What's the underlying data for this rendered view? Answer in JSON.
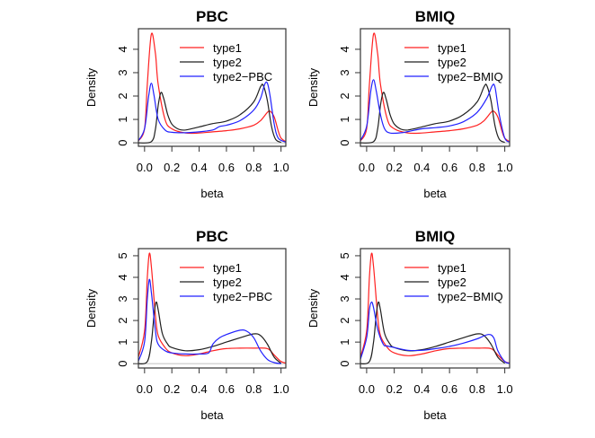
{
  "colors": {
    "type1": "#ff2020",
    "type2": "#202020",
    "normalized": "#2020ff",
    "zero_line": "#c8c8c8"
  },
  "chart_data": [
    {
      "type": "line",
      "title": "PBC",
      "xlabel": "beta",
      "ylabel": "Density",
      "xlim": [
        -0.045,
        1.035
      ],
      "ylim": [
        -0.15,
        4.88
      ],
      "xticks": [
        "0.0",
        "0.2",
        "0.4",
        "0.6",
        "0.8",
        "1.0"
      ],
      "yticks": [
        "0",
        "1",
        "2",
        "3",
        "4"
      ],
      "legend_position": "top-right",
      "series": [
        {
          "name": "type1",
          "color": "#ff2020",
          "points": [
            [
              -0.05,
              0.05
            ],
            [
              0,
              0.6
            ],
            [
              0.02,
              2.5
            ],
            [
              0.05,
              4.65
            ],
            [
              0.08,
              3.8
            ],
            [
              0.1,
              2.5
            ],
            [
              0.15,
              1.0
            ],
            [
              0.2,
              0.6
            ],
            [
              0.3,
              0.42
            ],
            [
              0.4,
              0.42
            ],
            [
              0.5,
              0.47
            ],
            [
              0.6,
              0.52
            ],
            [
              0.7,
              0.6
            ],
            [
              0.8,
              0.75
            ],
            [
              0.85,
              0.95
            ],
            [
              0.9,
              1.3
            ],
            [
              0.92,
              1.35
            ],
            [
              0.95,
              1.1
            ],
            [
              0.98,
              0.5
            ],
            [
              1.0,
              0.2
            ],
            [
              1.04,
              0.03
            ]
          ]
        },
        {
          "name": "type2",
          "color": "#202020",
          "points": [
            [
              -0.05,
              0
            ],
            [
              0.05,
              0.05
            ],
            [
              0.08,
              0.6
            ],
            [
              0.1,
              1.6
            ],
            [
              0.12,
              2.15
            ],
            [
              0.14,
              1.9
            ],
            [
              0.17,
              1.2
            ],
            [
              0.2,
              0.8
            ],
            [
              0.25,
              0.58
            ],
            [
              0.3,
              0.55
            ],
            [
              0.4,
              0.68
            ],
            [
              0.5,
              0.82
            ],
            [
              0.6,
              0.93
            ],
            [
              0.7,
              1.2
            ],
            [
              0.8,
              1.75
            ],
            [
              0.85,
              2.4
            ],
            [
              0.87,
              2.45
            ],
            [
              0.9,
              1.8
            ],
            [
              0.93,
              0.7
            ],
            [
              0.96,
              0.15
            ],
            [
              1.0,
              0.02
            ]
          ]
        },
        {
          "name": "type2−PBC",
          "color": "#2020ff",
          "points": [
            [
              -0.05,
              0.05
            ],
            [
              0,
              0.6
            ],
            [
              0.03,
              2.0
            ],
            [
              0.05,
              2.55
            ],
            [
              0.07,
              2.0
            ],
            [
              0.1,
              1.0
            ],
            [
              0.15,
              0.55
            ],
            [
              0.2,
              0.45
            ],
            [
              0.3,
              0.43
            ],
            [
              0.4,
              0.47
            ],
            [
              0.5,
              0.55
            ],
            [
              0.55,
              0.7
            ],
            [
              0.6,
              0.75
            ],
            [
              0.7,
              0.95
            ],
            [
              0.8,
              1.4
            ],
            [
              0.85,
              1.9
            ],
            [
              0.88,
              2.5
            ],
            [
              0.9,
              2.55
            ],
            [
              0.92,
              2.0
            ],
            [
              0.95,
              0.8
            ],
            [
              0.98,
              0.2
            ],
            [
              1.04,
              0.02
            ]
          ]
        }
      ]
    },
    {
      "type": "line",
      "title": "BMIQ",
      "xlabel": "beta",
      "ylabel": "Density",
      "xlim": [
        -0.045,
        1.035
      ],
      "ylim": [
        -0.15,
        4.88
      ],
      "xticks": [
        "0.0",
        "0.2",
        "0.4",
        "0.6",
        "0.8",
        "1.0"
      ],
      "yticks": [
        "0",
        "1",
        "2",
        "3",
        "4"
      ],
      "legend_position": "top-right",
      "series": [
        {
          "name": "type1",
          "color": "#ff2020",
          "points": [
            [
              -0.05,
              0.05
            ],
            [
              0,
              0.6
            ],
            [
              0.02,
              2.5
            ],
            [
              0.05,
              4.65
            ],
            [
              0.08,
              3.8
            ],
            [
              0.1,
              2.5
            ],
            [
              0.15,
              1.0
            ],
            [
              0.2,
              0.6
            ],
            [
              0.3,
              0.42
            ],
            [
              0.4,
              0.42
            ],
            [
              0.5,
              0.47
            ],
            [
              0.6,
              0.52
            ],
            [
              0.7,
              0.6
            ],
            [
              0.8,
              0.75
            ],
            [
              0.85,
              0.95
            ],
            [
              0.9,
              1.3
            ],
            [
              0.92,
              1.35
            ],
            [
              0.95,
              1.1
            ],
            [
              0.98,
              0.5
            ],
            [
              1.0,
              0.2
            ],
            [
              1.04,
              0.03
            ]
          ]
        },
        {
          "name": "type2",
          "color": "#202020",
          "points": [
            [
              -0.05,
              0
            ],
            [
              0.05,
              0.05
            ],
            [
              0.08,
              0.6
            ],
            [
              0.1,
              1.6
            ],
            [
              0.12,
              2.15
            ],
            [
              0.14,
              1.9
            ],
            [
              0.17,
              1.2
            ],
            [
              0.2,
              0.8
            ],
            [
              0.25,
              0.58
            ],
            [
              0.3,
              0.55
            ],
            [
              0.4,
              0.68
            ],
            [
              0.5,
              0.82
            ],
            [
              0.6,
              0.93
            ],
            [
              0.7,
              1.2
            ],
            [
              0.8,
              1.75
            ],
            [
              0.85,
              2.4
            ],
            [
              0.87,
              2.45
            ],
            [
              0.9,
              1.8
            ],
            [
              0.93,
              0.7
            ],
            [
              0.96,
              0.15
            ],
            [
              1.0,
              0.02
            ]
          ]
        },
        {
          "name": "type2−BMIQ",
          "color": "#2020ff",
          "points": [
            [
              -0.05,
              0.05
            ],
            [
              0,
              0.7
            ],
            [
              0.03,
              2.2
            ],
            [
              0.05,
              2.7
            ],
            [
              0.07,
              2.2
            ],
            [
              0.1,
              1.2
            ],
            [
              0.13,
              0.6
            ],
            [
              0.17,
              0.42
            ],
            [
              0.25,
              0.43
            ],
            [
              0.3,
              0.48
            ],
            [
              0.4,
              0.6
            ],
            [
              0.5,
              0.65
            ],
            [
              0.6,
              0.72
            ],
            [
              0.7,
              0.9
            ],
            [
              0.8,
              1.3
            ],
            [
              0.87,
              1.9
            ],
            [
              0.91,
              2.45
            ],
            [
              0.93,
              2.35
            ],
            [
              0.96,
              1.2
            ],
            [
              1.0,
              0.2
            ],
            [
              1.04,
              0.03
            ]
          ]
        }
      ]
    },
    {
      "type": "line",
      "title": "PBC",
      "xlabel": "beta",
      "ylabel": "Density",
      "xlim": [
        -0.045,
        1.035
      ],
      "ylim": [
        -0.2,
        5.33
      ],
      "xticks": [
        "0.0",
        "0.2",
        "0.4",
        "0.6",
        "0.8",
        "1.0"
      ],
      "yticks": [
        "0",
        "1",
        "2",
        "3",
        "4",
        "5"
      ],
      "legend_position": "top-right",
      "series": [
        {
          "name": "type1",
          "color": "#ff2020",
          "points": [
            [
              -0.05,
              0.2
            ],
            [
              0,
              1.5
            ],
            [
              0.02,
              4.0
            ],
            [
              0.035,
              5.1
            ],
            [
              0.05,
              4.5
            ],
            [
              0.08,
              2.2
            ],
            [
              0.1,
              1.3
            ],
            [
              0.15,
              0.75
            ],
            [
              0.2,
              0.5
            ],
            [
              0.3,
              0.37
            ],
            [
              0.4,
              0.45
            ],
            [
              0.5,
              0.6
            ],
            [
              0.6,
              0.7
            ],
            [
              0.7,
              0.72
            ],
            [
              0.8,
              0.72
            ],
            [
              0.9,
              0.7
            ],
            [
              0.95,
              0.4
            ],
            [
              1.0,
              0.1
            ],
            [
              1.04,
              0.02
            ]
          ]
        },
        {
          "name": "type2",
          "color": "#202020",
          "points": [
            [
              -0.05,
              0
            ],
            [
              0.02,
              0.1
            ],
            [
              0.05,
              1.0
            ],
            [
              0.07,
              2.3
            ],
            [
              0.085,
              2.85
            ],
            [
              0.1,
              2.5
            ],
            [
              0.13,
              1.4
            ],
            [
              0.17,
              0.9
            ],
            [
              0.2,
              0.75
            ],
            [
              0.3,
              0.6
            ],
            [
              0.4,
              0.65
            ],
            [
              0.5,
              0.8
            ],
            [
              0.6,
              1.0
            ],
            [
              0.7,
              1.2
            ],
            [
              0.8,
              1.38
            ],
            [
              0.85,
              1.3
            ],
            [
              0.9,
              0.9
            ],
            [
              0.95,
              0.3
            ],
            [
              1.0,
              0.02
            ]
          ]
        },
        {
          "name": "type2−PBC",
          "color": "#2020ff",
          "points": [
            [
              -0.05,
              0.05
            ],
            [
              0,
              1.0
            ],
            [
              0.02,
              3.0
            ],
            [
              0.035,
              3.9
            ],
            [
              0.05,
              3.3
            ],
            [
              0.08,
              1.5
            ],
            [
              0.1,
              0.9
            ],
            [
              0.15,
              0.6
            ],
            [
              0.2,
              0.5
            ],
            [
              0.3,
              0.45
            ],
            [
              0.4,
              0.45
            ],
            [
              0.47,
              0.5
            ],
            [
              0.5,
              0.9
            ],
            [
              0.55,
              1.2
            ],
            [
              0.6,
              1.35
            ],
            [
              0.7,
              1.55
            ],
            [
              0.75,
              1.5
            ],
            [
              0.8,
              1.2
            ],
            [
              0.85,
              0.6
            ],
            [
              0.9,
              0.2
            ],
            [
              0.95,
              0.05
            ],
            [
              1.0,
              0
            ]
          ]
        }
      ]
    },
    {
      "type": "line",
      "title": "BMIQ",
      "xlabel": "beta",
      "ylabel": "Density",
      "xlim": [
        -0.045,
        1.035
      ],
      "ylim": [
        -0.2,
        5.33
      ],
      "xticks": [
        "0.0",
        "0.2",
        "0.4",
        "0.6",
        "0.8",
        "1.0"
      ],
      "yticks": [
        "0",
        "1",
        "2",
        "3",
        "4",
        "5"
      ],
      "legend_position": "top-right",
      "series": [
        {
          "name": "type1",
          "color": "#ff2020",
          "points": [
            [
              -0.05,
              0.2
            ],
            [
              0,
              1.5
            ],
            [
              0.02,
              4.0
            ],
            [
              0.035,
              5.1
            ],
            [
              0.05,
              4.5
            ],
            [
              0.08,
              2.2
            ],
            [
              0.1,
              1.3
            ],
            [
              0.15,
              0.75
            ],
            [
              0.2,
              0.5
            ],
            [
              0.3,
              0.37
            ],
            [
              0.4,
              0.45
            ],
            [
              0.5,
              0.6
            ],
            [
              0.6,
              0.7
            ],
            [
              0.7,
              0.72
            ],
            [
              0.8,
              0.72
            ],
            [
              0.9,
              0.7
            ],
            [
              0.95,
              0.4
            ],
            [
              1.0,
              0.1
            ],
            [
              1.04,
              0.02
            ]
          ]
        },
        {
          "name": "type2",
          "color": "#202020",
          "points": [
            [
              -0.05,
              0
            ],
            [
              0.02,
              0.1
            ],
            [
              0.05,
              1.0
            ],
            [
              0.07,
              2.3
            ],
            [
              0.085,
              2.85
            ],
            [
              0.1,
              2.5
            ],
            [
              0.13,
              1.4
            ],
            [
              0.17,
              0.9
            ],
            [
              0.2,
              0.75
            ],
            [
              0.3,
              0.6
            ],
            [
              0.4,
              0.65
            ],
            [
              0.5,
              0.8
            ],
            [
              0.6,
              1.0
            ],
            [
              0.7,
              1.2
            ],
            [
              0.8,
              1.38
            ],
            [
              0.85,
              1.3
            ],
            [
              0.9,
              0.9
            ],
            [
              0.95,
              0.3
            ],
            [
              1.0,
              0.02
            ]
          ]
        },
        {
          "name": "type2−BMIQ",
          "color": "#2020ff",
          "points": [
            [
              -0.05,
              0.1
            ],
            [
              0,
              1.2
            ],
            [
              0.02,
              2.5
            ],
            [
              0.035,
              2.85
            ],
            [
              0.05,
              2.6
            ],
            [
              0.08,
              1.6
            ],
            [
              0.12,
              0.9
            ],
            [
              0.15,
              0.82
            ],
            [
              0.2,
              0.75
            ],
            [
              0.3,
              0.62
            ],
            [
              0.4,
              0.62
            ],
            [
              0.5,
              0.7
            ],
            [
              0.6,
              0.8
            ],
            [
              0.7,
              0.95
            ],
            [
              0.8,
              1.15
            ],
            [
              0.88,
              1.35
            ],
            [
              0.92,
              1.2
            ],
            [
              0.95,
              0.6
            ],
            [
              1.0,
              0.1
            ],
            [
              1.04,
              0.02
            ]
          ]
        }
      ]
    }
  ]
}
